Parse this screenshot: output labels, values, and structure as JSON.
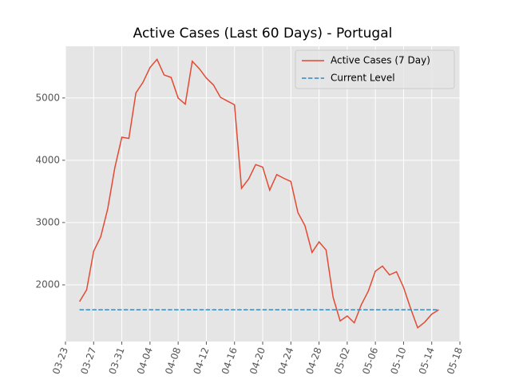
{
  "chart_data": {
    "type": "line",
    "title": "Active Cases (Last 60 Days) - Portugal",
    "x": [
      "03-25",
      "03-26",
      "03-27",
      "03-28",
      "03-29",
      "03-30",
      "03-31",
      "04-01",
      "04-02",
      "04-03",
      "04-04",
      "04-05",
      "04-06",
      "04-07",
      "04-08",
      "04-09",
      "04-10",
      "04-11",
      "04-12",
      "04-13",
      "04-14",
      "04-15",
      "04-16",
      "04-17",
      "04-18",
      "04-19",
      "04-20",
      "04-21",
      "04-22",
      "04-23",
      "04-24",
      "04-25",
      "04-26",
      "04-27",
      "04-28",
      "04-29",
      "04-30",
      "05-01",
      "05-02",
      "05-03",
      "05-04",
      "05-05",
      "05-06",
      "05-07",
      "05-08",
      "05-09",
      "05-10",
      "05-11",
      "05-12",
      "05-13",
      "05-14",
      "05-15"
    ],
    "series": [
      {
        "name": "Active Cases (7 Day)",
        "color": "#e24a33",
        "dashed": false,
        "values": [
          1730,
          1920,
          2540,
          2770,
          3220,
          3880,
          4370,
          4350,
          5080,
          5250,
          5490,
          5620,
          5370,
          5330,
          5000,
          4900,
          5590,
          5470,
          5320,
          5210,
          5010,
          4950,
          4890,
          3550,
          3700,
          3930,
          3890,
          3520,
          3770,
          3710,
          3660,
          3160,
          2950,
          2520,
          2690,
          2560,
          1800,
          1420,
          1500,
          1390,
          1680,
          1900,
          2220,
          2300,
          2160,
          2210,
          1960,
          1620,
          1310,
          1400,
          1530,
          1600
        ]
      },
      {
        "name": "Current Level",
        "color": "#348abd",
        "dashed": true,
        "values": [
          1600,
          1600,
          1600,
          1600,
          1600,
          1600,
          1600,
          1600,
          1600,
          1600,
          1600,
          1600,
          1600,
          1600,
          1600,
          1600,
          1600,
          1600,
          1600,
          1600,
          1600,
          1600,
          1600,
          1600,
          1600,
          1600,
          1600,
          1600,
          1600,
          1600,
          1600,
          1600,
          1600,
          1600,
          1600,
          1600,
          1600,
          1600,
          1600,
          1600,
          1600,
          1600,
          1600,
          1600,
          1600,
          1600,
          1600,
          1600,
          1600,
          1600,
          1600,
          1600
        ]
      }
    ],
    "xlim": [
      "03-23",
      "05-18"
    ],
    "xticks": [
      "03-23",
      "03-27",
      "03-31",
      "04-04",
      "04-08",
      "04-12",
      "04-16",
      "04-20",
      "04-24",
      "04-28",
      "05-02",
      "05-06",
      "05-10",
      "05-14",
      "05-18"
    ],
    "ylim": [
      1090,
      5830
    ],
    "yticks": [
      2000,
      3000,
      4000,
      5000
    ],
    "grid": true,
    "legend": "upper right"
  }
}
